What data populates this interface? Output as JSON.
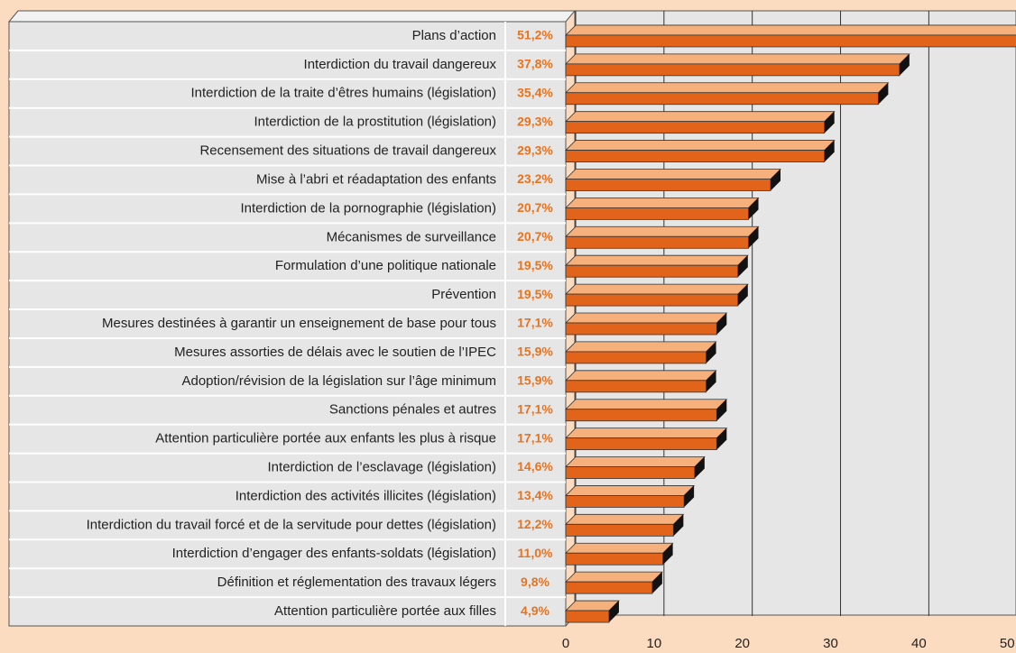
{
  "chart_data": {
    "type": "bar",
    "orientation": "horizontal",
    "categories": [
      "Plans d’action",
      "Interdiction du travail dangereux",
      "Interdiction de la traite d’êtres humains (législation)",
      "Interdiction de la prostitution (législation)",
      "Recensement des situations de travail dangereux",
      "Mise à l’abri et réadaptation des enfants",
      "Interdiction de la pornographie (législation)",
      "Mécanismes de surveillance",
      "Formulation d’une politique nationale",
      "Prévention",
      "Mesures destinées à garantir un enseignement de base pour tous",
      "Mesures assorties de délais avec le soutien de l’IPEC",
      "Adoption/révision de la législation sur l’âge minimum",
      "Sanctions pénales et autres",
      "Attention particulière portée aux enfants les plus à risque",
      "Interdiction de l’esclavage (législation)",
      "Interdiction des activités illicites (législation)",
      "Interdiction du travail forcé et de la servitude pour dettes (législation)",
      "Interdiction d’engager des enfants-soldats (législation)",
      "Définition et réglementation des travaux légers",
      "Attention particulière portée aux filles"
    ],
    "values": [
      51.2,
      37.8,
      35.4,
      29.3,
      29.3,
      23.2,
      20.7,
      20.7,
      19.5,
      19.5,
      17.1,
      15.9,
      15.9,
      17.1,
      17.1,
      14.6,
      13.4,
      12.2,
      11.0,
      9.8,
      4.9
    ],
    "value_labels": [
      "51,2%",
      "37,8%",
      "35,4%",
      "29,3%",
      "29,3%",
      "23,2%",
      "20,7%",
      "20,7%",
      "19,5%",
      "19,5%",
      "17,1%",
      "15,9%",
      "15,9%",
      "17,1%",
      "17,1%",
      "14,6%",
      "13,4%",
      "12,2%",
      "11,0%",
      "9,8%",
      "4,9%"
    ],
    "color": "#e2641a",
    "xlim": [
      0,
      51
    ],
    "xticks": [
      0,
      10,
      20,
      30,
      40,
      50
    ],
    "grid": true
  }
}
